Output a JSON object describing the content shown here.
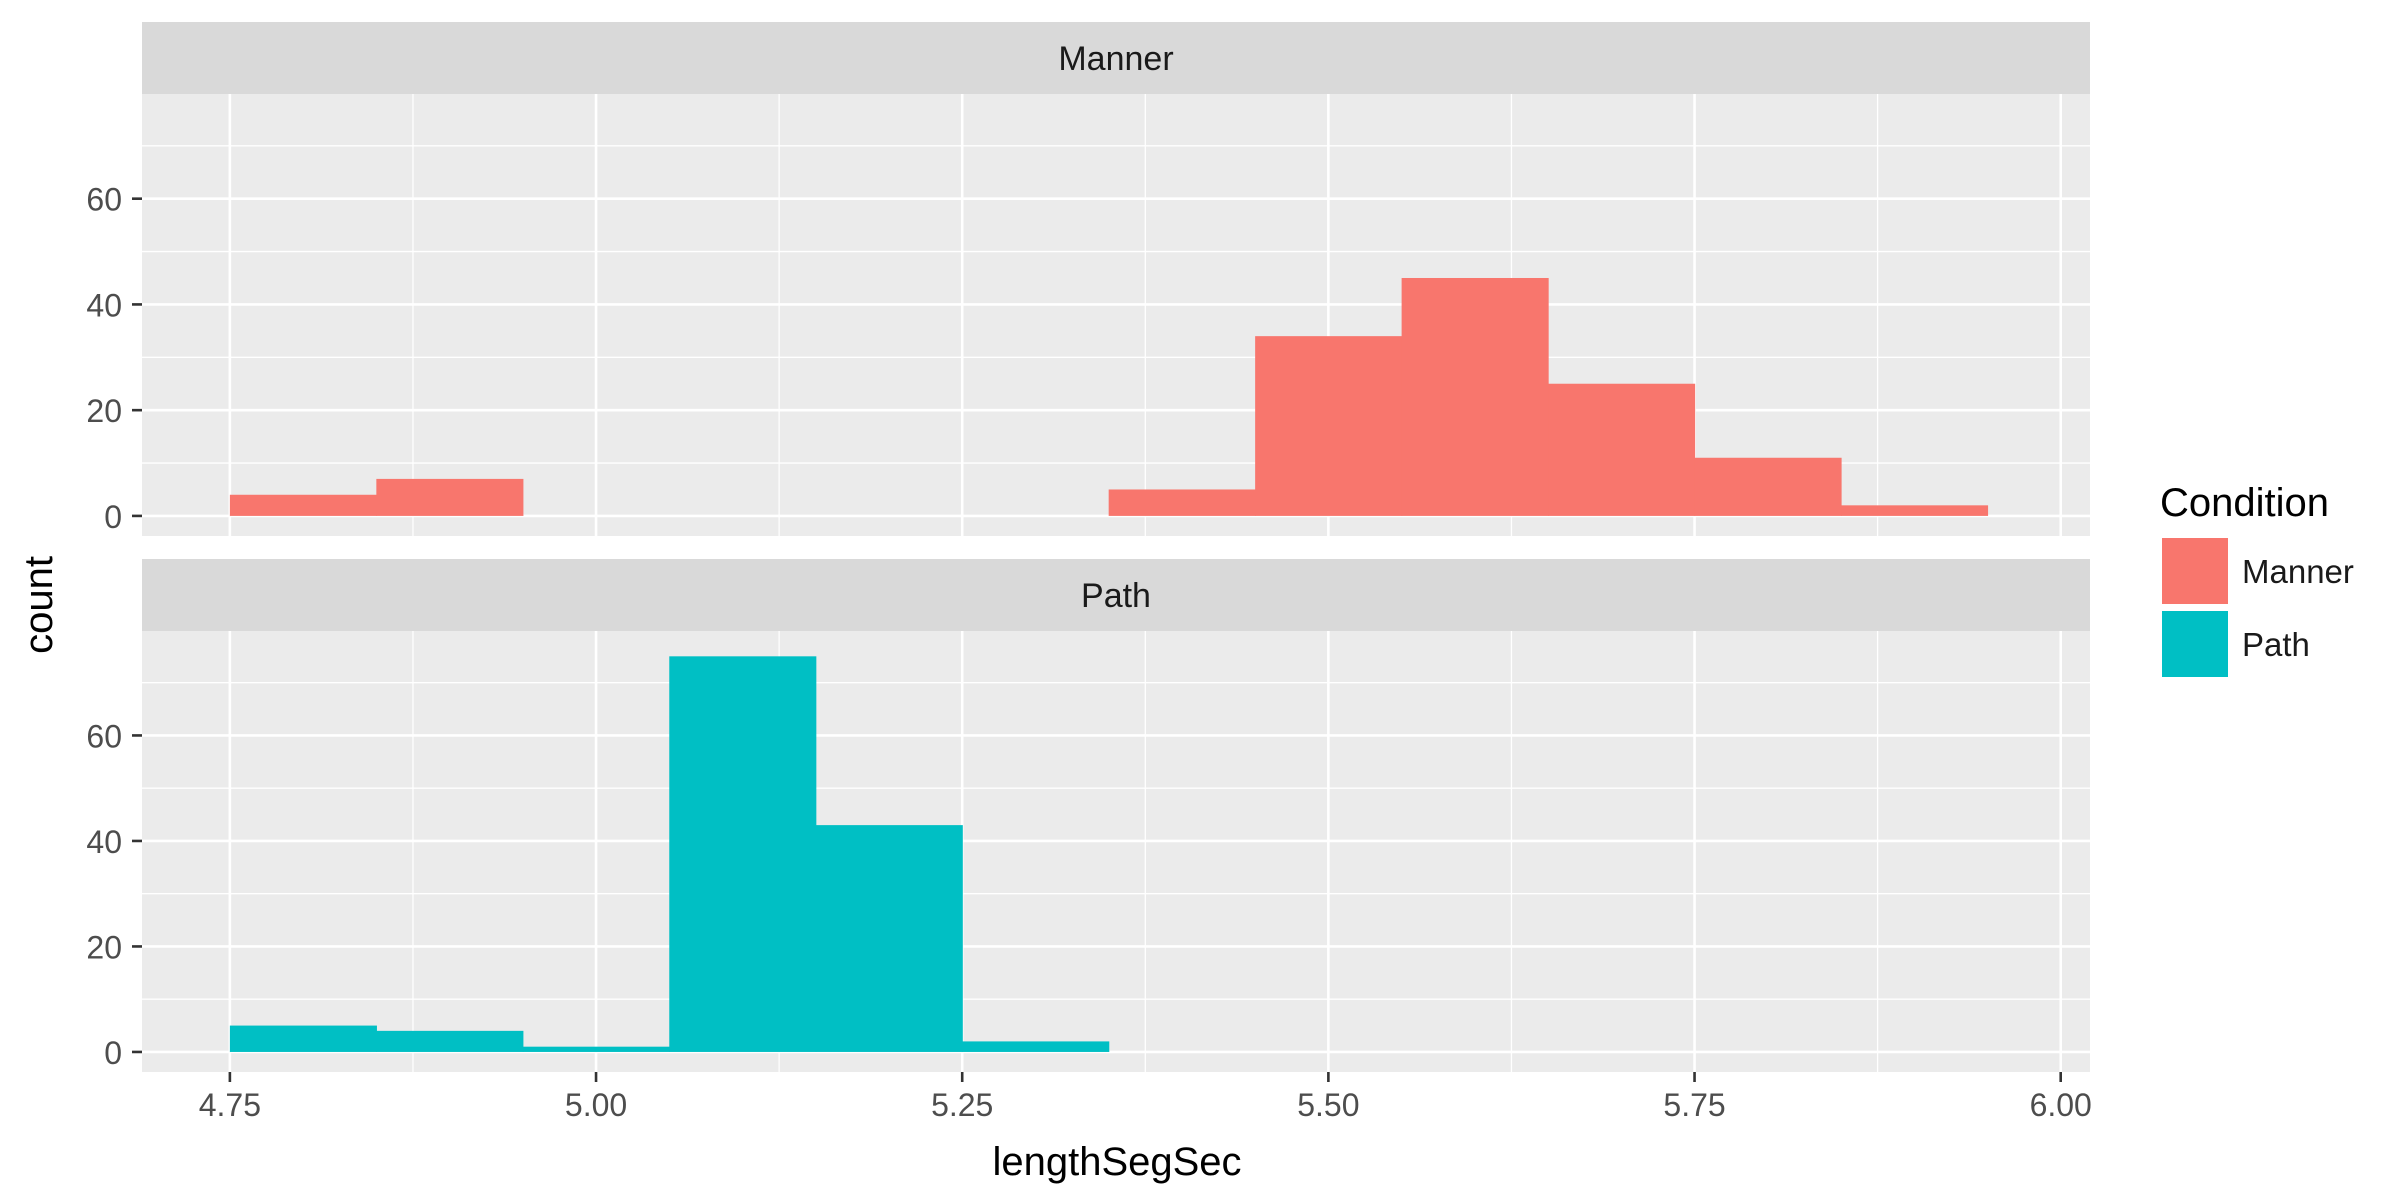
{
  "chart_data": {
    "type": "bar",
    "xlabel": "lengthSegSec",
    "ylabel": "count",
    "xlim": [
      4.69,
      6.02
    ],
    "ylim": [
      -3.8,
      79.8
    ],
    "x_ticks": [
      "4.75",
      "5.00",
      "5.25",
      "5.50",
      "5.75",
      "6.00"
    ],
    "y_ticks": [
      "0",
      "20",
      "40",
      "60"
    ],
    "grid": true,
    "bin_width": 0.1,
    "bin_centers": [
      4.8,
      4.9,
      5.0,
      5.1,
      5.2,
      5.3,
      5.4,
      5.5,
      5.6,
      5.7,
      5.8,
      5.9
    ],
    "facets": [
      {
        "strip": "Manner",
        "color": "#F8766D",
        "values": [
          4,
          7,
          0,
          0,
          0,
          0,
          5,
          34,
          45,
          25,
          11,
          2
        ]
      },
      {
        "strip": "Path",
        "color": "#00BFC4",
        "values": [
          5,
          4,
          1,
          75,
          43,
          2,
          0,
          0,
          0,
          0,
          0,
          0
        ]
      }
    ],
    "legend": {
      "title": "Condition",
      "position": "right",
      "items": [
        {
          "label": "Manner",
          "color": "#F8766D"
        },
        {
          "label": "Path",
          "color": "#00BFC4"
        }
      ]
    }
  }
}
